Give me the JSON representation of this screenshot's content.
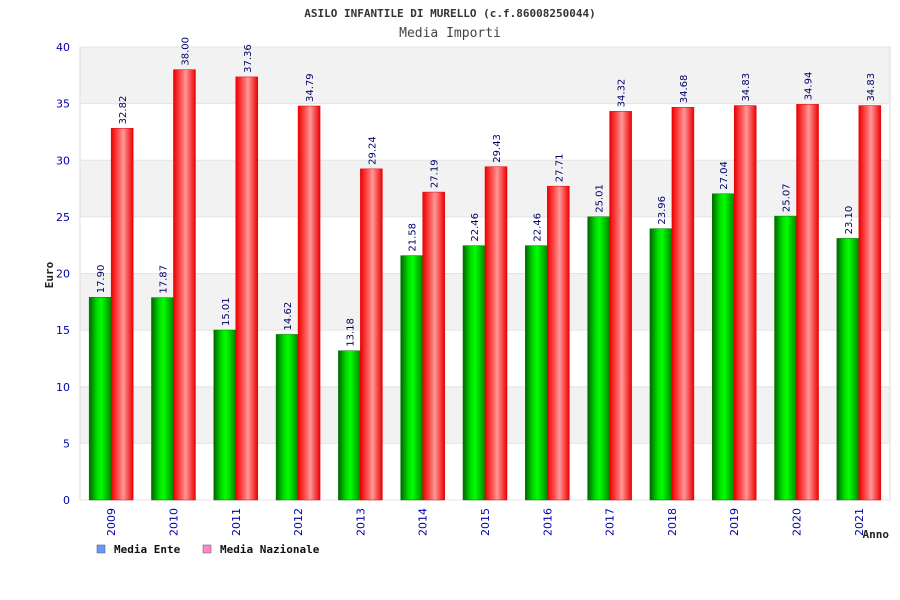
{
  "chart_data": {
    "type": "bar",
    "title": "ASILO INFANTILE DI MURELLO (c.f.86008250044)",
    "subtitle": "Media Importi",
    "xlabel": "Anno",
    "ylabel": "Euro",
    "ylim": [
      0,
      40
    ],
    "yticks": [
      0,
      5,
      10,
      15,
      20,
      25,
      30,
      35,
      40
    ],
    "grid": true,
    "legend_position": "bottom-left",
    "categories": [
      "2009",
      "2010",
      "2011",
      "2012",
      "2013",
      "2014",
      "2015",
      "2016",
      "2017",
      "2018",
      "2019",
      "2020",
      "2021"
    ],
    "series": [
      {
        "name": "Media Ente",
        "color": "#00cc00",
        "legend_color": "#6699ff",
        "values": [
          17.9,
          17.87,
          15.01,
          14.62,
          13.18,
          21.58,
          22.46,
          22.46,
          25.01,
          23.96,
          27.04,
          25.07,
          23.1
        ],
        "labels": [
          "17.90",
          "17.87",
          "15.01",
          "14.62",
          "13.18",
          "21.58",
          "22.46",
          "22.46",
          "25.01",
          "23.96",
          "27.04",
          "25.07",
          "23.10"
        ]
      },
      {
        "name": "Media Nazionale",
        "color": "#ff0000",
        "legend_color": "#ff88cc",
        "values": [
          32.82,
          38.0,
          37.36,
          34.79,
          29.24,
          27.19,
          29.43,
          27.71,
          34.32,
          34.68,
          34.83,
          34.94,
          34.83
        ],
        "labels": [
          "32.82",
          "38.00",
          "37.36",
          "34.79",
          "29.24",
          "27.19",
          "29.43",
          "27.71",
          "34.32",
          "34.68",
          "34.83",
          "34.94",
          "34.83"
        ]
      }
    ]
  }
}
